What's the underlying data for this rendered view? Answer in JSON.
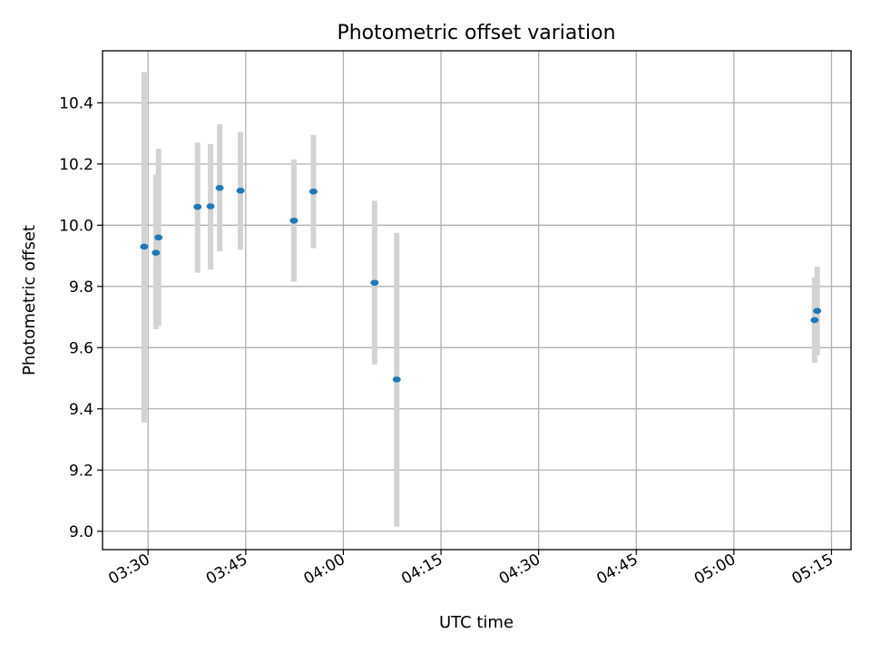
{
  "chart_data": {
    "type": "scatter",
    "title": "Photometric offset variation",
    "xlabel": "UTC time",
    "ylabel": "Photometric offset",
    "grid": true,
    "xlim": [
      "03:23",
      "05:18"
    ],
    "ylim": [
      8.94,
      10.57
    ],
    "x_ticks": [
      "03:30",
      "03:45",
      "04:00",
      "04:15",
      "04:30",
      "04:45",
      "05:00",
      "05:15"
    ],
    "y_ticks": [
      9.0,
      9.2,
      9.4,
      9.6,
      9.8,
      10.0,
      10.2,
      10.4
    ],
    "y_tick_labels": [
      "9.0",
      "9.2",
      "9.4",
      "9.6",
      "9.8",
      "10.0",
      "10.2",
      "10.4"
    ],
    "point_color": "#1f77b4",
    "errorbar_color": "#d3d3d3",
    "points": [
      {
        "t": "03:29:24",
        "y": 9.93,
        "err_low": 9.355,
        "err_high": 10.5
      },
      {
        "t": "03:31:12",
        "y": 9.91,
        "err_low": 9.66,
        "err_high": 10.165
      },
      {
        "t": "03:31:36",
        "y": 9.96,
        "err_low": 9.67,
        "err_high": 10.25
      },
      {
        "t": "03:37:36",
        "y": 10.06,
        "err_low": 9.845,
        "err_high": 10.27
      },
      {
        "t": "03:39:36",
        "y": 10.062,
        "err_low": 9.855,
        "err_high": 10.265
      },
      {
        "t": "03:41:00",
        "y": 10.122,
        "err_low": 9.915,
        "err_high": 10.33
      },
      {
        "t": "03:44:12",
        "y": 10.113,
        "err_low": 9.92,
        "err_high": 10.305
      },
      {
        "t": "03:52:24",
        "y": 10.015,
        "err_low": 9.815,
        "err_high": 10.215
      },
      {
        "t": "03:55:24",
        "y": 10.11,
        "err_low": 9.925,
        "err_high": 10.295
      },
      {
        "t": "04:04:48",
        "y": 9.812,
        "err_low": 9.545,
        "err_high": 10.08
      },
      {
        "t": "04:08:12",
        "y": 9.496,
        "err_low": 9.015,
        "err_high": 9.975
      },
      {
        "t": "05:12:24",
        "y": 9.69,
        "err_low": 9.55,
        "err_high": 9.83
      },
      {
        "t": "05:12:48",
        "y": 9.72,
        "err_low": 9.575,
        "err_high": 9.865
      }
    ]
  }
}
